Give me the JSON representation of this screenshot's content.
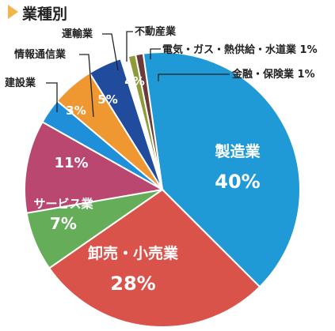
{
  "title": "業種別",
  "colors": {
    "title_marker": "#f3b54a",
    "title_text": "#222222",
    "leader": "#222222"
  },
  "chart_data": {
    "type": "pie",
    "unit": "%",
    "title": "業種別",
    "slices": [
      {
        "label": "製造業",
        "value": 40,
        "display": "40%",
        "color": "#1f9ad6"
      },
      {
        "label": "卸売・小売業",
        "value": 28,
        "display": "28%",
        "color": "#d9534b"
      },
      {
        "label": "サービス業",
        "value": 7,
        "display": "7%",
        "color": "#66ad5a"
      },
      {
        "label": "",
        "value": 11,
        "display": "11%",
        "color": "#b9476f"
      },
      {
        "label": "建設業",
        "value": 3,
        "display": "3%",
        "color": "#1e8fd8"
      },
      {
        "label": "情報通信業",
        "value": 5,
        "display": "5%",
        "color": "#ef9730"
      },
      {
        "label": "運輸業",
        "value": 4,
        "display": "4%",
        "color": "#214c9d"
      },
      {
        "label": "不動産業",
        "value": 0,
        "display": "",
        "color": "#ffffff"
      },
      {
        "label": "電気・ガス・熱供給・水道業",
        "value": 1,
        "display": "1%",
        "color": "#8f9a38"
      },
      {
        "label": "金融・保険業",
        "value": 1,
        "display": "1%",
        "color": "#6b3a3b"
      }
    ]
  }
}
